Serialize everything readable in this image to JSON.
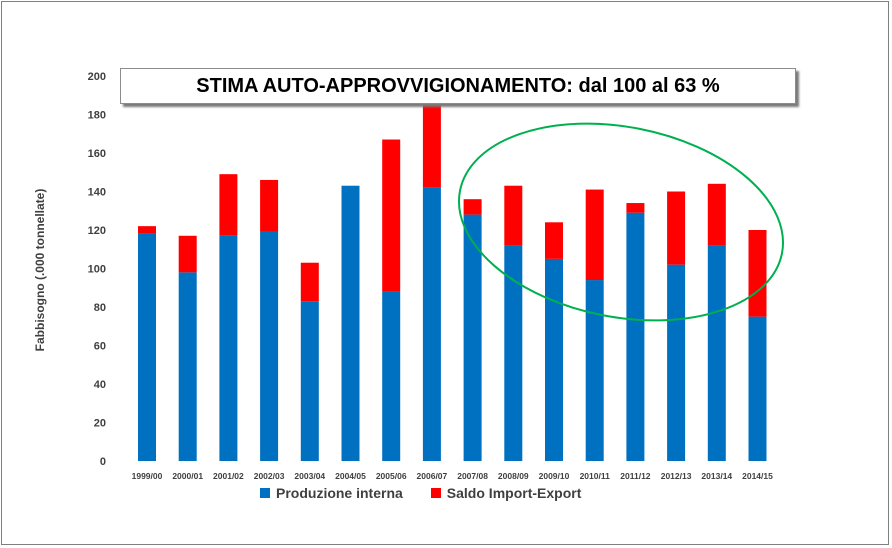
{
  "chart_data": {
    "type": "bar",
    "stacked": true,
    "title": "STIMA AUTO-APPROVVIGIONAMENTO: dal 100 al 63 %",
    "xlabel": "",
    "ylabel": "Fabbisogno (.000 tonnellate)",
    "ylim": [
      0,
      200
    ],
    "yticks": [
      0,
      20,
      40,
      60,
      80,
      100,
      120,
      140,
      160,
      180,
      200
    ],
    "grid": false,
    "legend_position": "bottom",
    "categories": [
      "1999/00",
      "2000/01",
      "2001/02",
      "2002/03",
      "2003/04",
      "2004/05",
      "2005/06",
      "2006/07",
      "2007/08",
      "2008/09",
      "2009/10",
      "2010/11",
      "2011/12",
      "2012/13",
      "2013/14",
      "2014/15"
    ],
    "series": [
      {
        "name": "Produzione interna",
        "color": "#0070c0",
        "values": [
          118,
          98,
          117,
          119,
          83,
          143,
          88,
          142,
          128,
          112,
          105,
          94,
          129,
          102,
          112,
          75
        ]
      },
      {
        "name": "Saldo Import-Export",
        "color": "#ff0000",
        "values": [
          4,
          19,
          32,
          27,
          20,
          0,
          79,
          43,
          8,
          31,
          19,
          47,
          5,
          38,
          32,
          45
        ]
      }
    ],
    "annotations": [
      {
        "type": "ellipse",
        "color": "#00b050",
        "highlights": [
          "2007/08",
          "2014/15"
        ]
      }
    ]
  }
}
